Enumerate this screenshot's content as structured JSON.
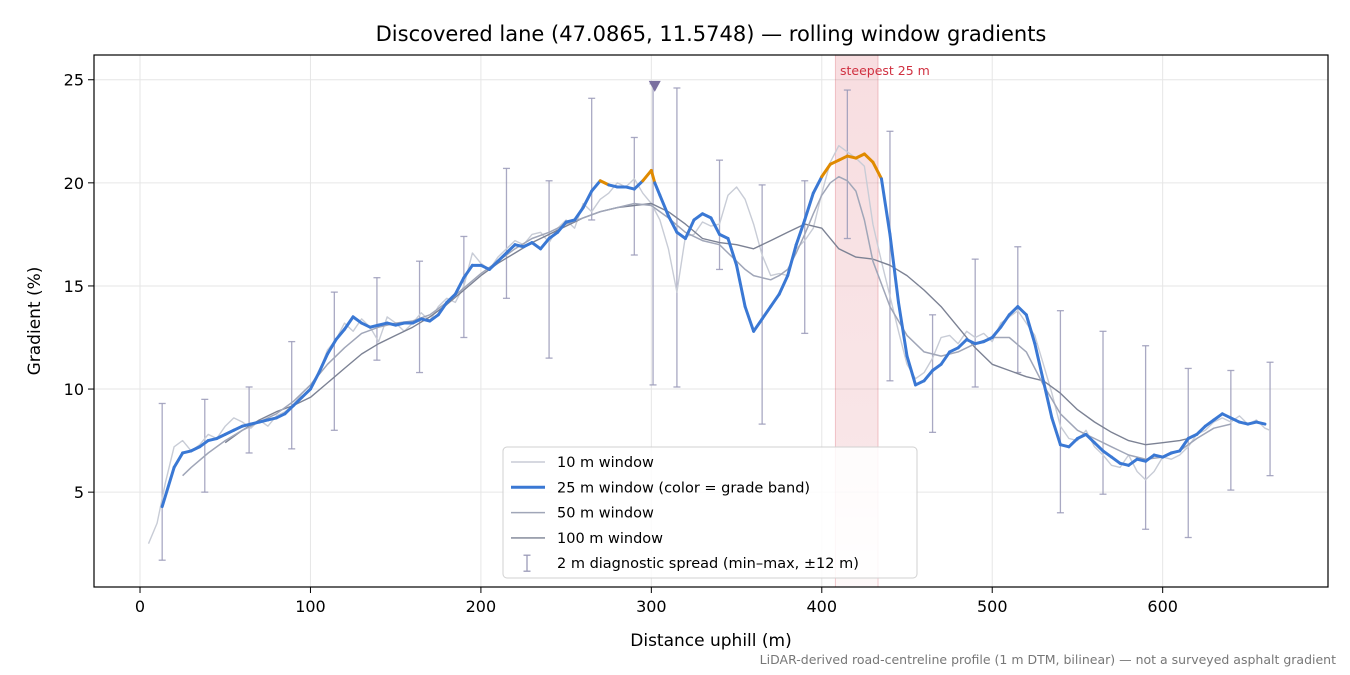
{
  "chart_data": {
    "type": "line",
    "title": "Discovered lane (47.0865, 11.5748) — rolling window gradients",
    "xlabel": "Distance uphill (m)",
    "ylabel": "Gradient (%)",
    "xlim": [
      -27,
      697
    ],
    "ylim": [
      0.4,
      26.2
    ],
    "x_ticks": [
      0,
      100,
      200,
      300,
      400,
      500,
      600
    ],
    "y_ticks": [
      5,
      10,
      15,
      20,
      25
    ],
    "x_tick_labels": [
      "0",
      "100",
      "200",
      "300",
      "400",
      "500",
      "600"
    ],
    "y_tick_labels": [
      "5",
      "10",
      "15",
      "20",
      "25"
    ],
    "grid": true,
    "legend_position": "bottom-center",
    "series": [
      {
        "name": "10 m window",
        "color": "#c8ccd6",
        "x": [
          5,
          10,
          15,
          20,
          25,
          30,
          35,
          40,
          45,
          50,
          55,
          60,
          65,
          70,
          75,
          80,
          85,
          90,
          95,
          100,
          105,
          110,
          115,
          120,
          125,
          130,
          135,
          140,
          145,
          150,
          155,
          160,
          165,
          170,
          175,
          180,
          185,
          190,
          195,
          200,
          205,
          210,
          215,
          220,
          225,
          230,
          235,
          240,
          245,
          250,
          255,
          260,
          265,
          270,
          275,
          280,
          285,
          290,
          295,
          300,
          305,
          310,
          315,
          320,
          325,
          330,
          335,
          340,
          345,
          350,
          355,
          360,
          365,
          370,
          375,
          380,
          385,
          390,
          395,
          400,
          405,
          410,
          415,
          420,
          425,
          430,
          435,
          440,
          445,
          450,
          455,
          460,
          465,
          470,
          475,
          480,
          485,
          490,
          495,
          500,
          505,
          510,
          515,
          520,
          525,
          530,
          535,
          540,
          545,
          550,
          555,
          560,
          565,
          570,
          575,
          580,
          585,
          590,
          595,
          600,
          605,
          610,
          615,
          620,
          625,
          630,
          635,
          640,
          645,
          650,
          655,
          660,
          663
        ],
        "y": [
          2.5,
          3.5,
          5.5,
          7.2,
          7.5,
          7.0,
          7.3,
          7.8,
          7.6,
          8.2,
          8.6,
          8.4,
          8.1,
          8.5,
          8.2,
          8.7,
          8.9,
          9.2,
          9.8,
          10.2,
          10.8,
          11.9,
          12.4,
          13.2,
          12.8,
          13.4,
          13.0,
          12.3,
          13.5,
          13.2,
          12.8,
          13.2,
          13.7,
          13.3,
          14.0,
          14.4,
          14.2,
          15.0,
          16.6,
          16.1,
          15.8,
          16.4,
          16.8,
          17.2,
          17.0,
          17.5,
          17.6,
          17.1,
          17.8,
          18.2,
          17.8,
          19.0,
          18.6,
          19.2,
          19.5,
          20.0,
          19.8,
          20.2,
          19.5,
          19.0,
          18.2,
          16.8,
          14.7,
          17.4,
          17.5,
          18.1,
          17.9,
          18.0,
          19.4,
          19.8,
          19.2,
          18.0,
          16.5,
          15.5,
          15.6,
          15.5,
          16.8,
          17.2,
          17.8,
          19.5,
          21.0,
          21.8,
          21.5,
          21.2,
          20.8,
          18.0,
          16.2,
          14.5,
          12.8,
          11.2,
          10.5,
          10.8,
          11.5,
          12.5,
          12.6,
          12.2,
          12.8,
          12.5,
          12.7,
          12.3,
          13.2,
          13.5,
          13.8,
          13.2,
          12.6,
          11.2,
          9.8,
          8.2,
          7.6,
          7.5,
          8.0,
          7.2,
          6.8,
          6.3,
          6.2,
          6.8,
          6.0,
          5.6,
          6.0,
          6.7,
          6.6,
          6.8,
          7.2,
          7.8,
          8.0,
          8.4,
          8.6,
          8.4,
          8.7,
          8.3,
          8.5,
          8.1,
          8.0
        ]
      },
      {
        "name": "25 m window (color = grade band)",
        "color": "#3a78d4",
        "steep_band_color": "#e08a00",
        "steep_threshold": 20,
        "x": [
          13,
          20,
          25,
          30,
          35,
          40,
          45,
          50,
          55,
          60,
          65,
          70,
          75,
          80,
          85,
          90,
          95,
          100,
          105,
          110,
          115,
          120,
          125,
          130,
          135,
          140,
          145,
          150,
          155,
          160,
          165,
          170,
          175,
          180,
          185,
          190,
          195,
          200,
          205,
          210,
          215,
          220,
          225,
          230,
          235,
          240,
          245,
          250,
          255,
          260,
          265,
          270,
          275,
          280,
          285,
          290,
          295,
          300,
          302,
          305,
          310,
          315,
          320,
          325,
          330,
          335,
          340,
          345,
          350,
          355,
          360,
          365,
          370,
          375,
          380,
          385,
          390,
          395,
          400,
          405,
          410,
          415,
          420,
          425,
          430,
          435,
          440,
          445,
          450,
          455,
          460,
          465,
          470,
          475,
          480,
          485,
          490,
          495,
          500,
          505,
          510,
          515,
          520,
          525,
          530,
          535,
          540,
          545,
          550,
          555,
          560,
          565,
          570,
          575,
          580,
          585,
          590,
          595,
          600,
          605,
          610,
          615,
          620,
          625,
          630,
          635,
          640,
          645,
          650,
          655,
          660
        ],
        "y": [
          4.3,
          6.2,
          6.9,
          7.0,
          7.2,
          7.5,
          7.6,
          7.8,
          8.0,
          8.2,
          8.3,
          8.4,
          8.5,
          8.6,
          8.8,
          9.2,
          9.6,
          10.0,
          10.8,
          11.7,
          12.4,
          12.9,
          13.5,
          13.2,
          13.0,
          13.1,
          13.2,
          13.1,
          13.2,
          13.2,
          13.4,
          13.3,
          13.6,
          14.2,
          14.6,
          15.4,
          16.0,
          16.0,
          15.8,
          16.2,
          16.6,
          17.0,
          16.9,
          17.1,
          16.8,
          17.3,
          17.6,
          18.1,
          18.2,
          18.8,
          19.6,
          20.1,
          19.9,
          19.8,
          19.8,
          19.7,
          20.1,
          20.6,
          20.0,
          19.4,
          18.4,
          17.6,
          17.3,
          18.2,
          18.5,
          18.3,
          17.5,
          17.3,
          16.0,
          14.0,
          12.8,
          13.4,
          14.0,
          14.6,
          15.5,
          17.0,
          18.2,
          19.5,
          20.3,
          20.9,
          21.1,
          21.3,
          21.2,
          21.4,
          21.0,
          20.2,
          17.5,
          14.2,
          11.6,
          10.2,
          10.4,
          10.9,
          11.2,
          11.8,
          12.0,
          12.4,
          12.2,
          12.3,
          12.5,
          13.0,
          13.6,
          14.0,
          13.6,
          12.2,
          10.4,
          8.6,
          7.3,
          7.2,
          7.6,
          7.8,
          7.4,
          7.0,
          6.7,
          6.4,
          6.3,
          6.6,
          6.5,
          6.8,
          6.7,
          6.9,
          7.0,
          7.6,
          7.8,
          8.2,
          8.5,
          8.8,
          8.6,
          8.4,
          8.3,
          8.4,
          8.3
        ]
      },
      {
        "name": "50 m window",
        "color": "#a0a6b8",
        "x": [
          25,
          30,
          40,
          50,
          60,
          70,
          80,
          90,
          100,
          110,
          120,
          130,
          140,
          150,
          160,
          170,
          180,
          190,
          200,
          210,
          220,
          230,
          240,
          250,
          260,
          270,
          280,
          290,
          300,
          310,
          320,
          330,
          340,
          345,
          350,
          355,
          360,
          365,
          370,
          375,
          380,
          385,
          390,
          395,
          400,
          405,
          410,
          415,
          420,
          425,
          430,
          440,
          450,
          460,
          470,
          480,
          490,
          500,
          510,
          520,
          530,
          540,
          550,
          560,
          570,
          580,
          590,
          600,
          610,
          620,
          630,
          640
        ],
        "y": [
          5.8,
          6.2,
          6.9,
          7.5,
          8.0,
          8.4,
          8.8,
          9.4,
          10.2,
          11.2,
          12.0,
          12.7,
          13.0,
          13.2,
          13.3,
          13.6,
          14.2,
          14.9,
          15.6,
          16.2,
          16.8,
          17.3,
          17.6,
          18.0,
          18.3,
          18.6,
          18.8,
          19.0,
          18.9,
          18.3,
          17.6,
          17.2,
          17.0,
          16.6,
          16.2,
          15.8,
          15.5,
          15.4,
          15.3,
          15.5,
          15.8,
          16.6,
          17.5,
          18.5,
          19.4,
          20.0,
          20.3,
          20.1,
          19.6,
          18.2,
          16.2,
          14.0,
          12.6,
          11.8,
          11.6,
          11.8,
          12.2,
          12.5,
          12.5,
          11.8,
          10.2,
          8.8,
          8.0,
          7.6,
          7.2,
          6.8,
          6.6,
          6.7,
          7.0,
          7.6,
          8.1,
          8.3
        ]
      },
      {
        "name": "100 m window",
        "color": "#7c8294",
        "x": [
          50,
          60,
          70,
          80,
          90,
          100,
          110,
          120,
          130,
          140,
          150,
          160,
          170,
          180,
          190,
          200,
          210,
          220,
          230,
          240,
          250,
          260,
          270,
          280,
          290,
          300,
          310,
          320,
          330,
          340,
          350,
          360,
          370,
          380,
          390,
          400,
          410,
          420,
          430,
          440,
          450,
          460,
          470,
          480,
          490,
          500,
          510,
          520,
          530,
          540,
          550,
          560,
          570,
          580,
          590,
          600,
          610,
          615
        ],
        "y": [
          7.4,
          8.0,
          8.5,
          8.9,
          9.2,
          9.6,
          10.3,
          11.0,
          11.7,
          12.2,
          12.6,
          13.0,
          13.5,
          14.1,
          14.8,
          15.5,
          16.1,
          16.6,
          17.1,
          17.5,
          17.9,
          18.3,
          18.6,
          18.8,
          18.9,
          19.0,
          18.6,
          18.0,
          17.3,
          17.1,
          17.0,
          16.8,
          17.2,
          17.6,
          18.0,
          17.8,
          16.8,
          16.4,
          16.3,
          16.0,
          15.5,
          14.8,
          14.0,
          13.0,
          12.0,
          11.2,
          10.9,
          10.6,
          10.4,
          9.8,
          9.0,
          8.4,
          7.9,
          7.5,
          7.3,
          7.4,
          7.5,
          7.6
        ]
      },
      {
        "name": "2 m diagnostic spread (min–max, ±12 m)",
        "type": "errorbar",
        "color": "#9a9ab8",
        "x": [
          13,
          38,
          64,
          89,
          114,
          139,
          164,
          190,
          215,
          240,
          265,
          290,
          301,
          315,
          340,
          365,
          390,
          415,
          440,
          465,
          490,
          515,
          540,
          565,
          590,
          615,
          640,
          663
        ],
        "ymin": [
          1.7,
          5.0,
          6.9,
          7.1,
          8.0,
          11.4,
          10.8,
          12.5,
          14.4,
          11.5,
          18.2,
          16.5,
          10.2,
          10.1,
          15.8,
          8.3,
          12.7,
          17.3,
          10.4,
          7.9,
          10.1,
          10.8,
          4.0,
          4.9,
          3.2,
          2.8,
          5.1,
          5.8
        ],
        "ymax": [
          9.3,
          9.5,
          10.1,
          12.3,
          14.7,
          15.4,
          16.2,
          17.4,
          20.7,
          20.1,
          24.1,
          22.2,
          24.8,
          24.6,
          21.1,
          19.9,
          20.1,
          24.5,
          22.5,
          13.6,
          16.3,
          16.9,
          13.8,
          12.8,
          12.1,
          11.0,
          10.9,
          11.3
        ]
      }
    ],
    "annotations": {
      "steepest_label": "steepest 25 m",
      "steepest_span": [
        408,
        433
      ],
      "steepest_color": "#d03040",
      "marker": {
        "x": 302,
        "y": 24.7,
        "symbol": "triangle-down",
        "color": "#7a6fa0"
      }
    },
    "footnote": "LiDAR-derived road-centreline profile (1 m DTM, bilinear) — not a surveyed asphalt gradient"
  }
}
